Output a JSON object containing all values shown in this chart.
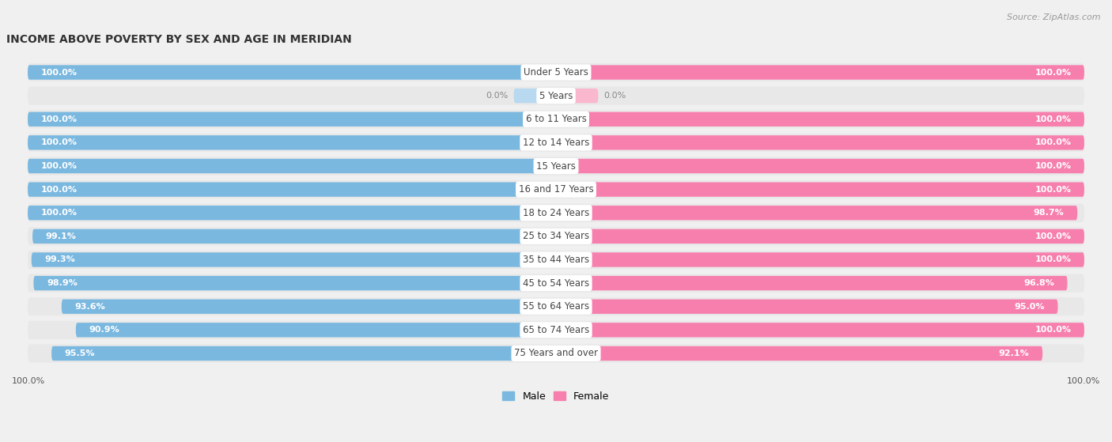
{
  "title": "INCOME ABOVE POVERTY BY SEX AND AGE IN MERIDIAN",
  "source": "Source: ZipAtlas.com",
  "categories": [
    "Under 5 Years",
    "5 Years",
    "6 to 11 Years",
    "12 to 14 Years",
    "15 Years",
    "16 and 17 Years",
    "18 to 24 Years",
    "25 to 34 Years",
    "35 to 44 Years",
    "45 to 54 Years",
    "55 to 64 Years",
    "65 to 74 Years",
    "75 Years and over"
  ],
  "male": [
    100.0,
    0.0,
    100.0,
    100.0,
    100.0,
    100.0,
    100.0,
    99.1,
    99.3,
    98.9,
    93.6,
    90.9,
    95.5
  ],
  "female": [
    100.0,
    0.0,
    100.0,
    100.0,
    100.0,
    100.0,
    98.7,
    100.0,
    100.0,
    96.8,
    95.0,
    100.0,
    92.1
  ],
  "male_color": "#7ab8e0",
  "female_color": "#f77fae",
  "male_color_light": "#b8d9ef",
  "female_color_light": "#f9b8cd",
  "row_bg_color": "#e8e8e8",
  "bg_color": "#f0f0f0",
  "label_fontsize": 8.5,
  "title_fontsize": 10,
  "value_fontsize": 8,
  "source_fontsize": 8
}
